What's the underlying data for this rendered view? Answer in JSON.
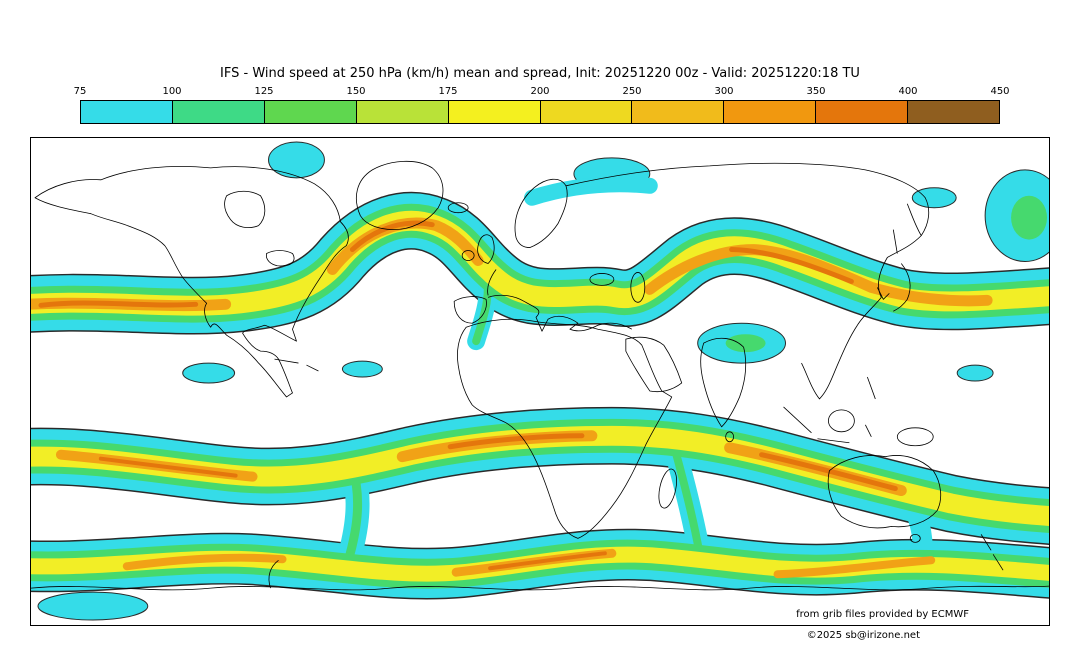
{
  "title": "IFS - Wind speed at 250 hPa (km/h) mean and spread, Init: 20251220 00z - Valid: 20251220:18 TU",
  "colorbar": {
    "tick_labels": [
      "75",
      "100",
      "125",
      "150",
      "175",
      "200",
      "250",
      "300",
      "350",
      "400",
      "450"
    ],
    "segment_colors": [
      "#35dce8",
      "#3eda86",
      "#5fd74f",
      "#b9e238",
      "#f4f01f",
      "#eed920",
      "#f1bb1b",
      "#f1980f",
      "#e4760c",
      "#8f5e1f"
    ]
  },
  "map": {
    "credit": "from grib files provided by ECMWF"
  },
  "footer": {
    "copyright": "©2025 sb@irizone.net"
  },
  "chart_data": {
    "type": "heatmap",
    "title": "IFS - Wind speed at 250 hPa (km/h) mean and spread, Init: 20251220 00z - Valid: 20251220:18 TU",
    "model": "IFS",
    "variable": "Wind speed at 250 hPa (ensemble mean and spread)",
    "units": "km/h",
    "init_time": "20251220 00z",
    "valid_time": "20251220:18 TU",
    "projection": "equirectangular global map with coastlines",
    "legend_position": "top horizontal colorbar",
    "levels": [
      75,
      100,
      125,
      150,
      175,
      200,
      250,
      300,
      350,
      400,
      450
    ],
    "level_colors": [
      "#35dce8",
      "#3eda86",
      "#5fd74f",
      "#b9e238",
      "#f4f01f",
      "#eed920",
      "#f1bb1b",
      "#f1980f",
      "#e4760c",
      "#8f5e1f"
    ],
    "notes": "Filled contours show jet streams: strong bands (200-300 km/h cores in orange) across North America, the North Atlantic into Europe, and central/east Asia in the northern hemisphere; two meandering subtropical and polar jet bands circle the southern hemisphere. Cyan fringes mark the 75 km/h threshold; thin black lines are coastlines and spread contours.",
    "source": "from grib files provided by ECMWF",
    "copyright": "©2025 sb@irizone.net"
  }
}
